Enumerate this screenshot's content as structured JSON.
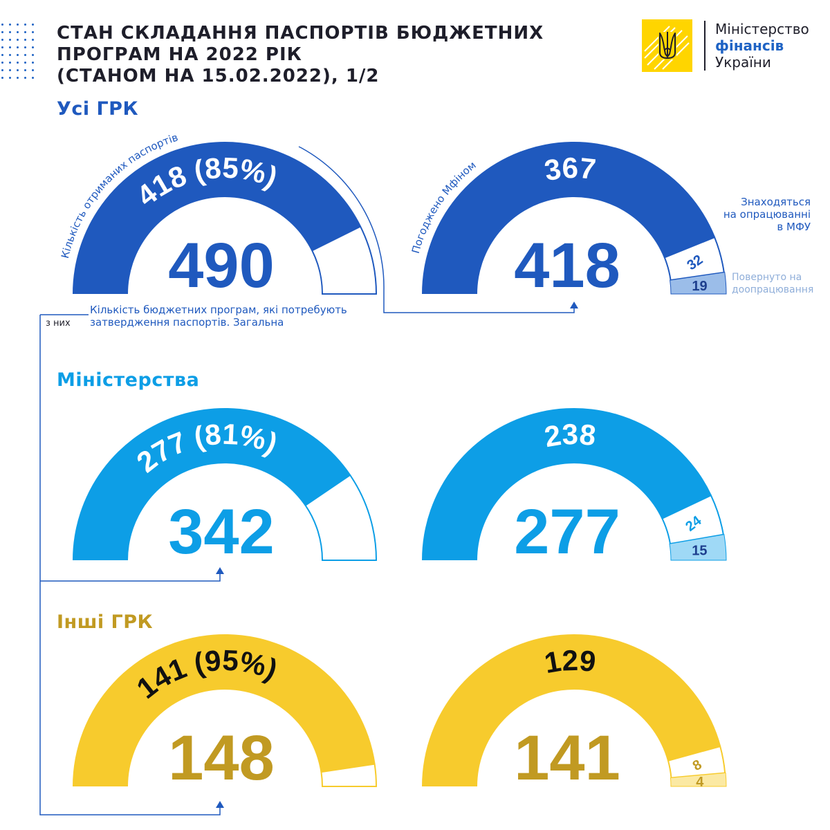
{
  "header": {
    "title_lines": [
      "СТАН СКЛАДАННЯ ПАСПОРТІВ БЮДЖЕТНИХ",
      "ПРОГРАМ НА 2022 РІК",
      "(СТАНОМ НА 15.02.2022), 1/2"
    ]
  },
  "logo": {
    "line1": "Міністерство",
    "line2": "фінансів",
    "line3": "України",
    "icon": "tryzub-emblem-icon"
  },
  "colors": {
    "blue_dark": "#1f59be",
    "blue_light": "#0d9ee6",
    "blue_light_pale": "#9fd9f6",
    "blue_dark_pale": "#9bbde9",
    "yellow": "#f7cb2d",
    "yellow_pale": "#fbe9a3",
    "gold": "#c19a22",
    "connector": "#1f59be",
    "muted": "#8faed9"
  },
  "sections": [
    {
      "label": "Усі ГРК",
      "color": "#1f59be",
      "pale": "#9bbde9",
      "received_label_color": "#ffffff",
      "gauge_left": {
        "total": "490",
        "received": "418 (85%)",
        "arc_label": "Кількість отриманих паспортів"
      },
      "gauge_right": {
        "total": "418",
        "approved": "367",
        "processing": "32",
        "returned": "19",
        "arc_label": "Погоджено Мфіном"
      }
    },
    {
      "label": "Міністерства",
      "color": "#0d9ee6",
      "pale": "#9fd9f6",
      "received_label_color": "#ffffff",
      "gauge_left": {
        "total": "342",
        "received": "277 (81%)"
      },
      "gauge_right": {
        "total": "277",
        "approved": "238",
        "processing": "24",
        "returned": "15"
      }
    },
    {
      "label": "Інші ГРК",
      "color": "#f7cb2d",
      "total_color": "#c19a22",
      "pale": "#fbe9a3",
      "received_label_color": "#111111",
      "gauge_left": {
        "total": "148",
        "received": "141 (95%)"
      },
      "gauge_right": {
        "total": "141",
        "approved": "129",
        "processing": "8",
        "returned": "4"
      }
    }
  ],
  "notes": {
    "processing": [
      "Знаходяться",
      "на опрацюванні",
      "в МФУ"
    ],
    "returned": [
      "Повернуто на",
      "доопрацювання"
    ],
    "total_desc": [
      "Кількість бюджетних програм, які потребують",
      "затвердження паспортів. Загальна"
    ],
    "of_them": "з них"
  },
  "chart_data": [
    {
      "type": "gauge",
      "title": "Усі ГРК — отримані паспорти",
      "categories": [
        "Кількість отриманих паспортів"
      ],
      "values": [
        418
      ],
      "total": 490,
      "percent": 85
    },
    {
      "type": "gauge",
      "title": "Усі ГРК — стан опрацювання",
      "categories": [
        "Погоджено Мфіном",
        "Знаходяться на опрацюванні в МФУ",
        "Повернуто на доопрацювання"
      ],
      "values": [
        367,
        32,
        19
      ],
      "total": 418
    },
    {
      "type": "gauge",
      "title": "Міністерства — отримані паспорти",
      "categories": [
        "Кількість отриманих паспортів"
      ],
      "values": [
        277
      ],
      "total": 342,
      "percent": 81
    },
    {
      "type": "gauge",
      "title": "Міністерства — стан опрацювання",
      "categories": [
        "Погоджено Мфіном",
        "Знаходяться на опрацюванні в МФУ",
        "Повернуто на доопрацювання"
      ],
      "values": [
        238,
        24,
        15
      ],
      "total": 277
    },
    {
      "type": "gauge",
      "title": "Інші ГРК — отримані паспорти",
      "categories": [
        "Кількість отриманих паспортів"
      ],
      "values": [
        141
      ],
      "total": 148,
      "percent": 95
    },
    {
      "type": "gauge",
      "title": "Інші ГРК — стан опрацювання",
      "categories": [
        "Погоджено Мфіном",
        "Знаходяться на опрацюванні в МФУ",
        "Повернуто на доопрацювання"
      ],
      "values": [
        129,
        8,
        4
      ],
      "total": 141
    }
  ]
}
